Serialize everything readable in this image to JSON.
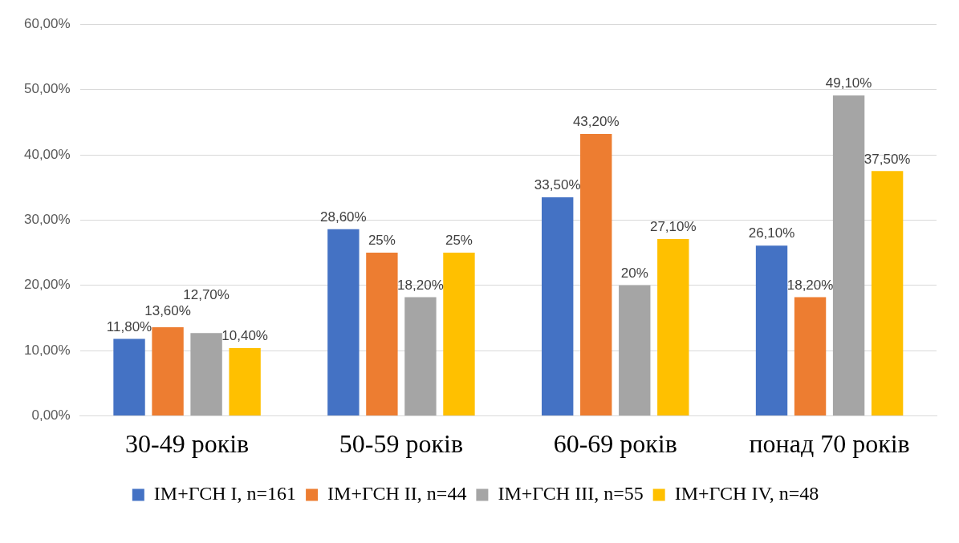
{
  "chart_data": {
    "type": "bar",
    "categories": [
      "30-49 років",
      "50-59 років",
      "60-69 років",
      "понад 70 років"
    ],
    "series": [
      {
        "name": "ІМ+ГСН I, n=161",
        "color": "#4472c4",
        "values": [
          11.8,
          28.6,
          33.5,
          26.1
        ],
        "value_labels": [
          "11,80%",
          "28,60%",
          "33,50%",
          "26,10%"
        ]
      },
      {
        "name": "ІМ+ГСН II, n=44",
        "color": "#ed7d31",
        "values": [
          13.6,
          25,
          43.2,
          18.2
        ],
        "value_labels": [
          "13,60%",
          "25%",
          "43,20%",
          "18,20%"
        ]
      },
      {
        "name": "ІМ+ГСН III, n=55",
        "color": "#a5a5a5",
        "values": [
          12.7,
          18.2,
          20,
          49.1
        ],
        "value_labels": [
          "12,70%",
          "18,20%",
          "20%",
          "49,10%"
        ]
      },
      {
        "name": "ІМ+ГСН IV, n=48",
        "color": "#ffc000",
        "values": [
          10.4,
          25,
          27.1,
          37.5
        ],
        "value_labels": [
          "10,40%",
          "25%",
          "27,10%",
          "37,50%"
        ]
      }
    ],
    "ylim": [
      0,
      60
    ],
    "yticks": [
      {
        "value": 0,
        "label": "0,00%"
      },
      {
        "value": 10,
        "label": "10,00%"
      },
      {
        "value": 20,
        "label": "20,00%"
      },
      {
        "value": 30,
        "label": "30,00%"
      },
      {
        "value": 40,
        "label": "40,00%"
      },
      {
        "value": 50,
        "label": "50,00%"
      },
      {
        "value": 60,
        "label": "60,00%"
      }
    ],
    "grid": "y",
    "legend": "bottom"
  }
}
